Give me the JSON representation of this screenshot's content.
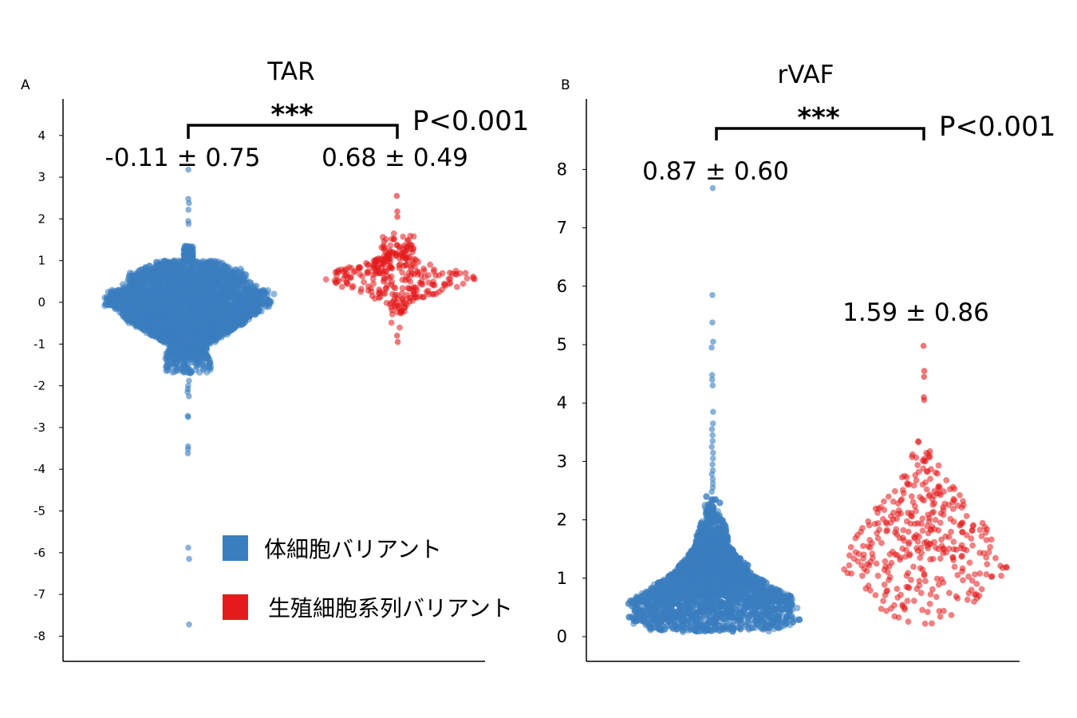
{
  "legend": {
    "items": [
      {
        "label": "体細胞バリアント",
        "color": "#3a7ebf"
      },
      {
        "label": "生殖細胞系列バリアント",
        "color": "#e41a1c"
      }
    ]
  },
  "chart_data": [
    {
      "panel": "A",
      "type": "scatter",
      "style": "swarm",
      "title": "TAR",
      "ylim": [
        -8.6,
        4.9
      ],
      "yticks": [
        4,
        3,
        2,
        1,
        0,
        -1,
        -2,
        -3,
        -4,
        -5,
        -6,
        -7,
        -8
      ],
      "ytick_labels": [
        "4",
        "3",
        "2",
        "1",
        "0",
        "-1",
        "-2",
        "-3",
        "-4",
        "-5",
        "-6",
        "-7",
        "-8"
      ],
      "categories": [
        "体細胞バリアント",
        "生殖細胞系列バリアント"
      ],
      "series": [
        {
          "name": "体細胞バリアント",
          "color": "#3a7ebf",
          "mean": -0.11,
          "sd": 0.75,
          "stat_label": "-0.11 ± 0.75",
          "core_range": [
            -1.7,
            1.3
          ],
          "outliers": [
            3.18,
            2.48,
            2.38,
            2.22,
            1.95,
            1.88,
            -1.88,
            -2.0,
            -2.08,
            -2.15,
            -2.25,
            -2.72,
            -2.75,
            -3.45,
            -3.52,
            -3.62,
            -5.88,
            -6.15,
            -7.72
          ]
        },
        {
          "name": "生殖細胞系列バリアント",
          "color": "#e41a1c",
          "mean": 0.68,
          "sd": 0.49,
          "stat_label": "0.68 ± 0.49",
          "range": [
            -0.95,
            2.55
          ],
          "outliers": [
            2.55,
            2.18,
            2.05,
            -0.8,
            -0.95
          ]
        }
      ],
      "significance": {
        "stars": "***",
        "p_label": "P<0.001"
      }
    },
    {
      "panel": "B",
      "type": "scatter",
      "style": "swarm",
      "title": "rVAF",
      "ylim": [
        -0.4,
        9.1
      ],
      "yticks": [
        8,
        7,
        6,
        5,
        4,
        3,
        2,
        1,
        0
      ],
      "ytick_labels": [
        "8",
        "7",
        "6",
        "5",
        "4",
        "3",
        "2",
        "1",
        "0"
      ],
      "categories": [
        "体細胞バリアント",
        "生殖細胞系列バリアント"
      ],
      "series": [
        {
          "name": "体細胞バリアント",
          "color": "#3a7ebf",
          "mean": 0.87,
          "sd": 0.6,
          "stat_label": "0.87 ± 0.60",
          "core_range": [
            0.08,
            2.4
          ],
          "outliers": [
            7.68,
            5.85,
            5.38,
            5.05,
            4.95,
            4.48,
            4.4,
            4.3,
            3.85,
            3.65,
            3.55,
            3.45,
            3.35,
            3.25,
            3.15,
            3.05,
            2.95,
            2.85,
            2.78,
            2.7,
            2.62,
            2.55,
            2.48
          ]
        },
        {
          "name": "生殖細胞系列バリアント",
          "color": "#e41a1c",
          "mean": 1.59,
          "sd": 0.86,
          "stat_label": "1.59 ± 0.86",
          "range": [
            0.12,
            4.98
          ],
          "outliers": [
            4.98,
            4.55,
            4.45,
            4.1,
            4.05
          ]
        }
      ],
      "significance": {
        "stars": "***",
        "p_label": "P<0.001"
      }
    }
  ]
}
